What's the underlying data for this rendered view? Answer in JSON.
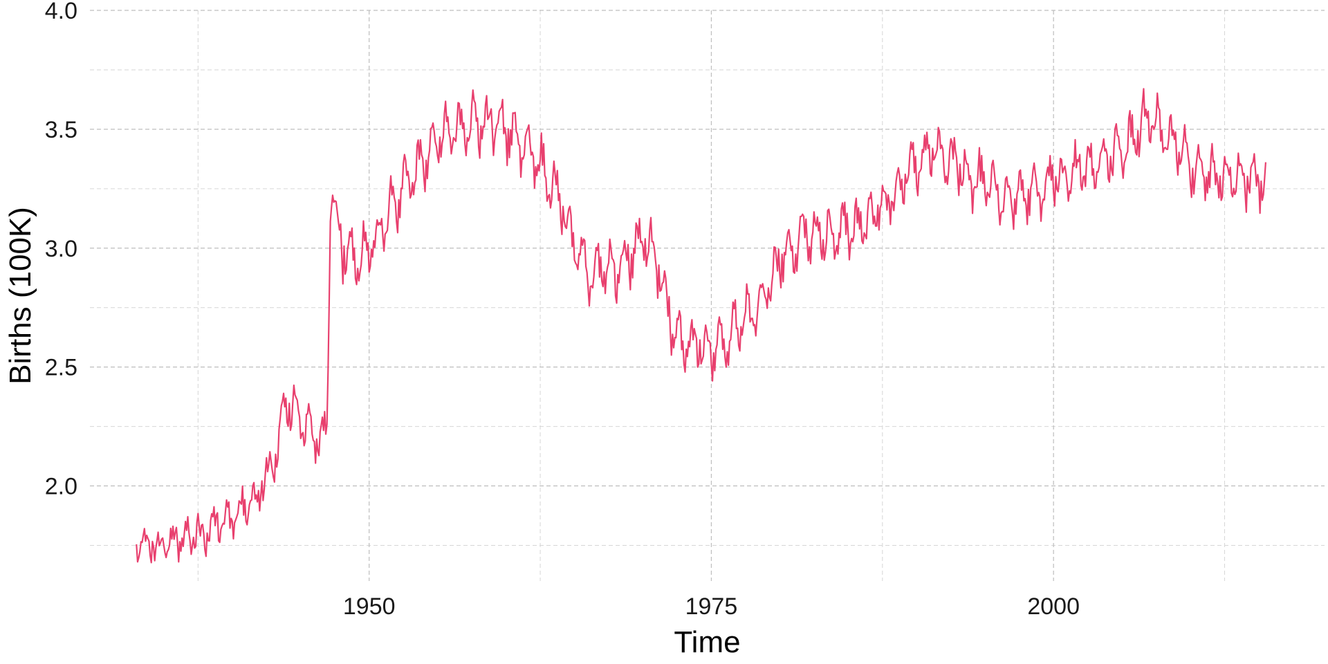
{
  "chart_data": {
    "type": "line",
    "title": "",
    "xlabel": "Time",
    "ylabel": "Births (100K)",
    "xlim": [
      1929.6,
      2019.8
    ],
    "ylim": [
      1.6,
      4.0
    ],
    "x_ticks": [
      1950,
      1975,
      2000
    ],
    "x_tick_labels": [
      "1950",
      "1975",
      "2000"
    ],
    "x_minor_ticks": [
      1937.5,
      1962.5,
      1987.5,
      2012.5
    ],
    "y_ticks": [
      2.0,
      2.5,
      3.0,
      3.5,
      4.0
    ],
    "y_tick_labels": [
      "2.0",
      "2.5",
      "3.0",
      "3.5",
      "4.0"
    ],
    "y_minor_ticks": [
      1.75,
      2.25,
      2.75,
      3.25,
      3.75
    ],
    "grid": true,
    "legend": "none",
    "series": [
      {
        "color": "#e8406e",
        "frequency": "monthly",
        "x_start": 1933.0,
        "x_end": 2015.5,
        "seasonal_amplitude": 0.12,
        "irregular_amplitude": 0.05,
        "trend": [
          [
            1933,
            1.74
          ],
          [
            1936,
            1.76
          ],
          [
            1938,
            1.81
          ],
          [
            1940,
            1.87
          ],
          [
            1942,
            1.97
          ],
          [
            1943,
            2.1
          ],
          [
            1944,
            2.35
          ],
          [
            1945,
            2.3
          ],
          [
            1946,
            2.2
          ],
          [
            1946.9,
            2.2
          ],
          [
            1947.2,
            3.25
          ],
          [
            1948,
            3.0
          ],
          [
            1949,
            2.95
          ],
          [
            1950,
            3.0
          ],
          [
            1951,
            3.1
          ],
          [
            1952,
            3.2
          ],
          [
            1953,
            3.3
          ],
          [
            1954,
            3.38
          ],
          [
            1955,
            3.45
          ],
          [
            1957,
            3.52
          ],
          [
            1959,
            3.52
          ],
          [
            1960,
            3.5
          ],
          [
            1961,
            3.45
          ],
          [
            1962,
            3.4
          ],
          [
            1963,
            3.3
          ],
          [
            1964,
            3.2
          ],
          [
            1965,
            3.0
          ],
          [
            1966,
            2.9
          ],
          [
            1967,
            2.9
          ],
          [
            1968,
            2.9
          ],
          [
            1969,
            2.95
          ],
          [
            1970,
            3.05
          ],
          [
            1971,
            2.95
          ],
          [
            1972,
            2.7
          ],
          [
            1973,
            2.6
          ],
          [
            1974,
            2.6
          ],
          [
            1975,
            2.55
          ],
          [
            1976,
            2.6
          ],
          [
            1977,
            2.68
          ],
          [
            1978,
            2.72
          ],
          [
            1979,
            2.8
          ],
          [
            1980,
            2.95
          ],
          [
            1981,
            3.0
          ],
          [
            1982,
            3.05
          ],
          [
            1984,
            3.05
          ],
          [
            1986,
            3.1
          ],
          [
            1988,
            3.2
          ],
          [
            1990,
            3.35
          ],
          [
            1991,
            3.4
          ],
          [
            1993,
            3.35
          ],
          [
            1995,
            3.25
          ],
          [
            1997,
            3.2
          ],
          [
            1999,
            3.25
          ],
          [
            2001,
            3.3
          ],
          [
            2003,
            3.35
          ],
          [
            2005,
            3.4
          ],
          [
            2007,
            3.55
          ],
          [
            2008,
            3.48
          ],
          [
            2010,
            3.35
          ],
          [
            2012,
            3.28
          ],
          [
            2015.5,
            3.3
          ]
        ]
      }
    ]
  }
}
